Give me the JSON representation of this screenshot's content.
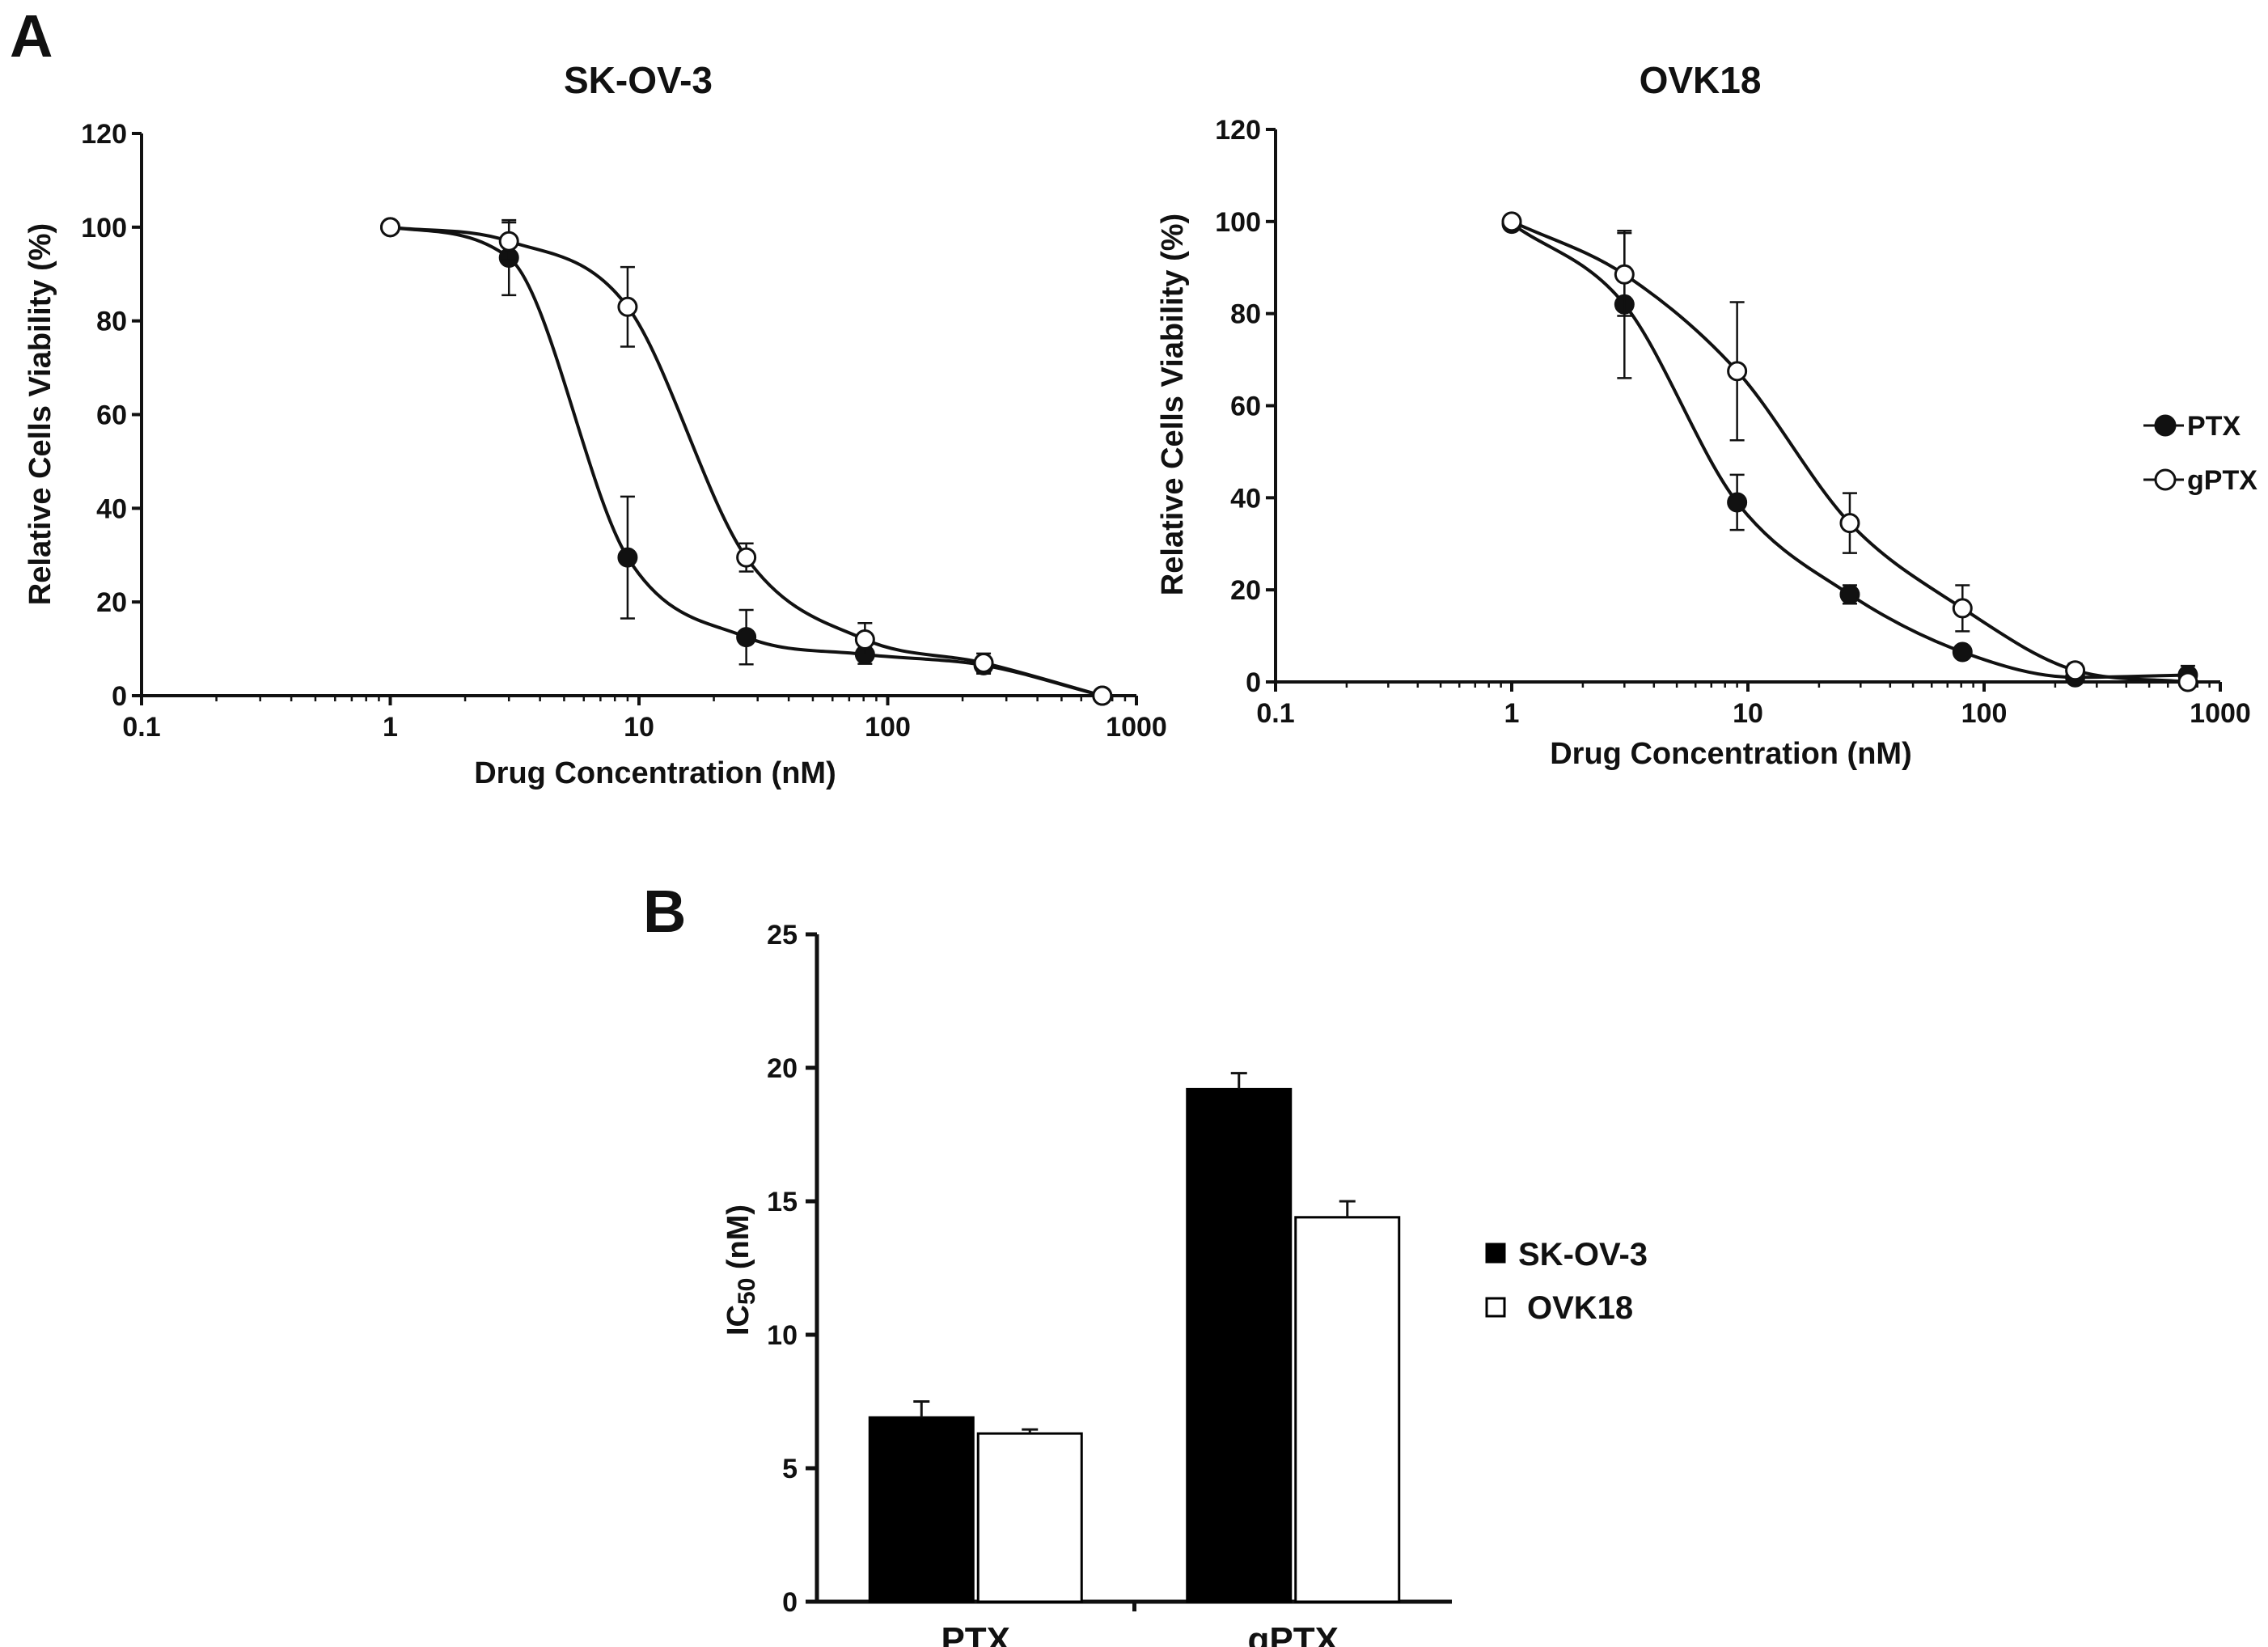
{
  "panels": {
    "a_letter": "A",
    "b_letter": "B"
  },
  "legend": {
    "series": [
      {
        "name": "PTX",
        "marker": "filled-circle"
      },
      {
        "name": "gPTX",
        "marker": "open-circle"
      }
    ]
  },
  "bar_legend": {
    "items": [
      {
        "name": "SK-OV-3",
        "swatch": "#000000"
      },
      {
        "name": "OVK18",
        "swatch": "#ffffff"
      }
    ]
  },
  "chart_data": [
    {
      "type": "line",
      "title": "SK-OV-3",
      "xlabel": "Drug Concentration (nM)",
      "ylabel": "Relative Cells Viability (%)",
      "x_scale": "log",
      "xlim": [
        0.1,
        1000
      ],
      "ylim": [
        0,
        120
      ],
      "x_ticks": [
        "0.1",
        "1",
        "10",
        "100",
        "1000"
      ],
      "y_ticks": [
        "0",
        "20",
        "40",
        "60",
        "80",
        "100",
        "120"
      ],
      "series": [
        {
          "name": "PTX",
          "x": [
            1,
            3,
            9,
            27,
            81,
            243,
            729
          ],
          "y": [
            100,
            93.5,
            29.5,
            12.5,
            8.8,
            6.5,
            0
          ],
          "error": [
            0,
            8,
            13,
            5.8,
            2,
            1.8,
            0
          ]
        },
        {
          "name": "gPTX",
          "x": [
            1,
            3,
            9,
            27,
            81,
            243,
            729
          ],
          "y": [
            100,
            97,
            83,
            29.5,
            12,
            7,
            0
          ],
          "error": [
            0,
            4,
            8.5,
            3,
            3.5,
            2,
            0
          ]
        }
      ]
    },
    {
      "type": "line",
      "title": "OVK18",
      "xlabel": "Drug Concentration (nM)",
      "ylabel": "Relative Cells Viability (%)",
      "x_scale": "log",
      "xlim": [
        0.1,
        1000
      ],
      "ylim": [
        0,
        120
      ],
      "x_ticks": [
        "0.1",
        "1",
        "10",
        "100",
        "1000"
      ],
      "y_ticks": [
        "0",
        "20",
        "40",
        "60",
        "80",
        "100",
        "120"
      ],
      "series": [
        {
          "name": "PTX",
          "x": [
            1,
            3,
            9,
            27,
            81,
            243,
            729
          ],
          "y": [
            99.5,
            82,
            39,
            19,
            6.5,
            1,
            1.5
          ],
          "error": [
            0,
            16,
            6,
            2,
            1,
            0.5,
            2
          ]
        },
        {
          "name": "gPTX",
          "x": [
            1,
            3,
            9,
            27,
            81,
            243,
            729
          ],
          "y": [
            100,
            88.5,
            67.5,
            34.5,
            16,
            2.5,
            0
          ],
          "error": [
            0,
            9,
            15,
            6.5,
            5,
            1.5,
            0
          ]
        }
      ]
    },
    {
      "type": "bar",
      "title": "",
      "xlabel": "",
      "ylabel": "IC50 (nM)",
      "ylim": [
        0,
        25
      ],
      "y_ticks": [
        "0",
        "5",
        "10",
        "15",
        "20",
        "25"
      ],
      "categories": [
        "PTX",
        "gPTX"
      ],
      "series": [
        {
          "name": "SK-OV-3",
          "values": [
            6.9,
            19.2
          ],
          "error": [
            0.6,
            0.6
          ]
        },
        {
          "name": "OVK18",
          "values": [
            6.3,
            14.4
          ],
          "error": [
            0.15,
            0.6
          ]
        }
      ]
    }
  ]
}
